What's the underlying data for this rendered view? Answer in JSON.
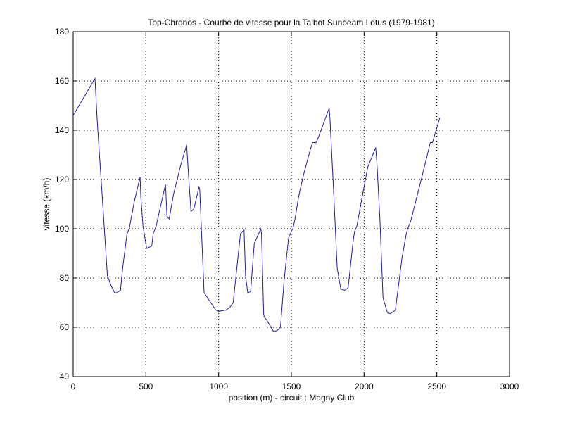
{
  "chart_data": {
    "type": "line",
    "title": "Top-Chronos - Courbe de vitesse pour la Talbot Sunbeam Lotus (1979-1981)",
    "xlabel": "position (m) - circuit : Magny Club",
    "ylabel": "vitesse (km/h)",
    "xlim": [
      0,
      3000
    ],
    "ylim": [
      40,
      180
    ],
    "xticks": [
      0,
      500,
      1000,
      1500,
      2000,
      2500,
      3000
    ],
    "yticks": [
      40,
      60,
      80,
      100,
      120,
      140,
      160,
      180
    ],
    "grid": true,
    "line_color": "#1f1f9f",
    "series": [
      {
        "x": [
          0,
          150,
          165,
          200,
          235,
          260,
          285,
          300,
          325,
          340,
          370,
          385,
          420,
          460,
          465,
          480,
          505,
          540,
          550,
          570,
          600,
          635,
          645,
          660,
          690,
          740,
          780,
          795,
          810,
          830,
          865,
          870,
          900,
          935,
          980,
          1000,
          1050,
          1075,
          1100,
          1150,
          1175,
          1185,
          1200,
          1220,
          1245,
          1290,
          1295,
          1310,
          1315,
          1330,
          1375,
          1400,
          1425,
          1450,
          1480,
          1500,
          1510,
          1525,
          1550,
          1580,
          1625,
          1645,
          1670,
          1685,
          1710,
          1760,
          1765,
          1790,
          1815,
          1840,
          1865,
          1890,
          1925,
          1935,
          1950,
          1990,
          2025,
          2080,
          2090,
          2110,
          2130,
          2160,
          2180,
          2215,
          2260,
          2290,
          2300,
          2320,
          2380,
          2435,
          2455,
          2470,
          2520
        ],
        "y": [
          146,
          161,
          144,
          113,
          81,
          77,
          74,
          74,
          75,
          84,
          98,
          100,
          111,
          121,
          113,
          101,
          92,
          93,
          98,
          101,
          109,
          118,
          105,
          104,
          114,
          126,
          134,
          120,
          107,
          108,
          117,
          116,
          74,
          71,
          67,
          66.5,
          67,
          68,
          70,
          98,
          99.5,
          81,
          74,
          74.5,
          94,
          100,
          98,
          65,
          64,
          63,
          58.5,
          58.5,
          60,
          79,
          96,
          99,
          100,
          104,
          113,
          121,
          131,
          135,
          135,
          137,
          141,
          149,
          145,
          116,
          84,
          75.5,
          75,
          76,
          95,
          99,
          101,
          114,
          125,
          133,
          125,
          102,
          72,
          66,
          65.5,
          67,
          88,
          98,
          100,
          103,
          117,
          130,
          135,
          135,
          145
        ]
      }
    ]
  }
}
